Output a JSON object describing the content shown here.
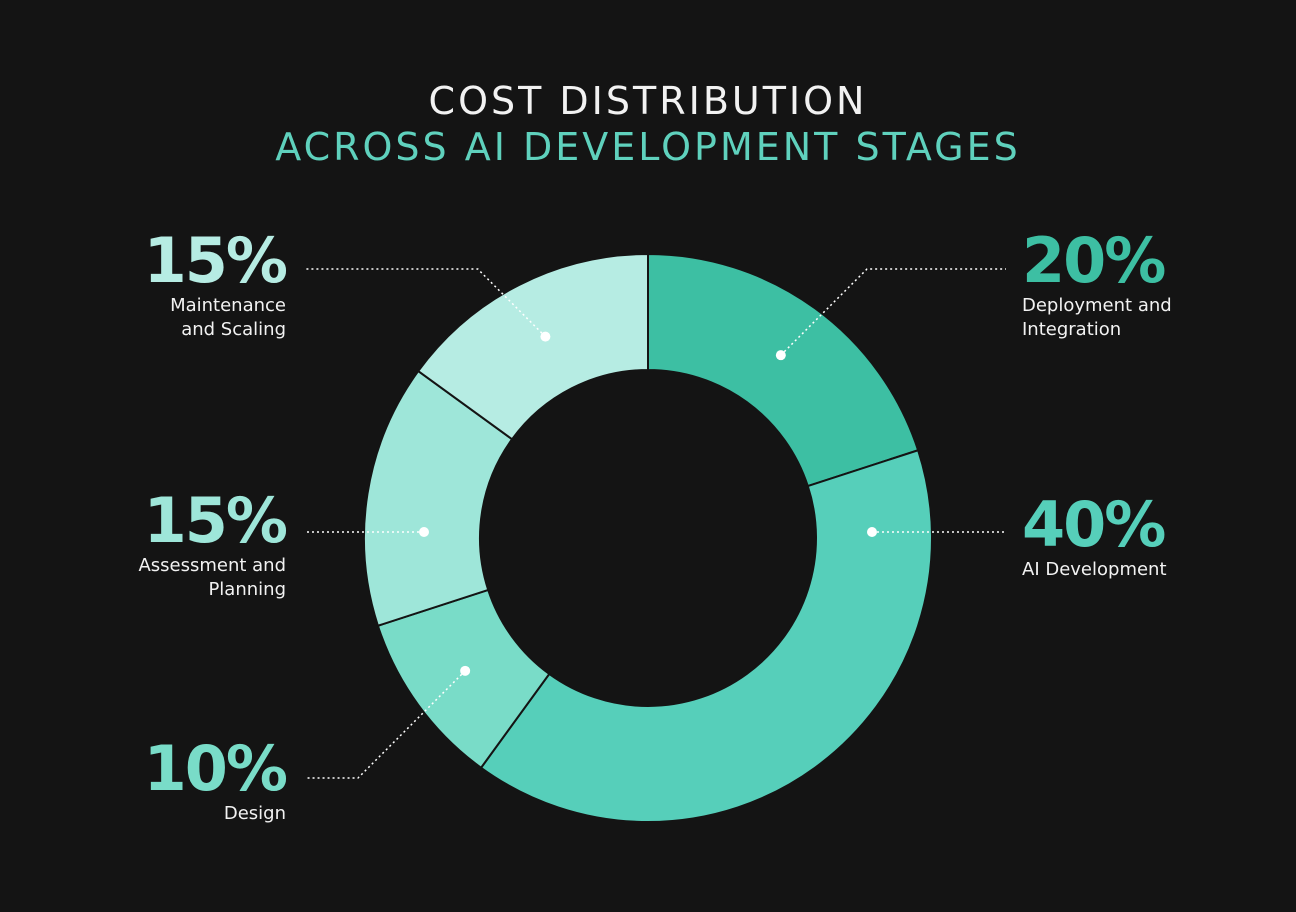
{
  "title": {
    "line1": "COST DISTRIBUTION",
    "line2": "ACROSS AI DEVELOPMENT STAGES"
  },
  "colors": {
    "background": "#141414",
    "title_primary": "#f2f2f2",
    "title_accent": "#5fd1bd",
    "slice_border": "#141414",
    "leader_line": "#ffffff"
  },
  "chart_data": {
    "type": "pie",
    "donut": true,
    "start": "top",
    "direction": "clockwise",
    "title": "COST DISTRIBUTION ACROSS AI DEVELOPMENT STAGES",
    "slices": [
      {
        "label": "Deployment and\nIntegration",
        "value": 20,
        "display": "20%",
        "color": "#3dbfa3",
        "pct_color": "#3dbfa3",
        "side": "right"
      },
      {
        "label": "AI Development",
        "value": 40,
        "display": "40%",
        "color": "#56cfba",
        "pct_color": "#56cfba",
        "side": "right"
      },
      {
        "label": "Design",
        "value": 10,
        "display": "10%",
        "color": "#79dcc8",
        "pct_color": "#79dcc8",
        "side": "left"
      },
      {
        "label": "Assessment and\nPlanning",
        "value": 15,
        "display": "15%",
        "color": "#9ee6d9",
        "pct_color": "#9ee6d9",
        "side": "left"
      },
      {
        "label": "Maintenance\nand Scaling",
        "value": 15,
        "display": "15%",
        "color": "#b6ece3",
        "pct_color": "#b6ece3",
        "side": "left"
      }
    ]
  }
}
